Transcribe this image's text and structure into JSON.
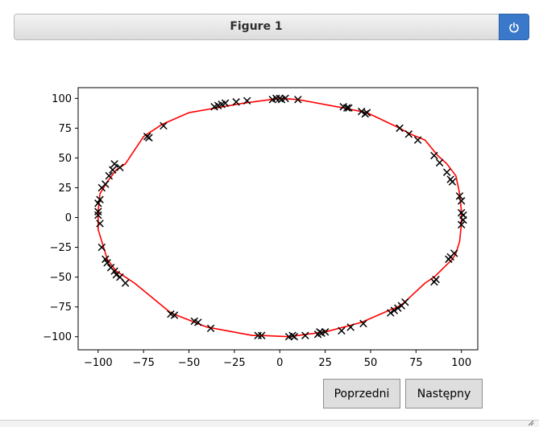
{
  "window": {
    "title": "Figure 1",
    "power_icon": "power-icon"
  },
  "buttons": {
    "prev_label": "Poprzedni",
    "next_label": "Następny"
  },
  "colors": {
    "line": "#ff0000",
    "marker": "#000000",
    "title_button": "#3a78c9"
  },
  "chart_data": {
    "type": "line",
    "title": "",
    "xlabel": "",
    "ylabel": "",
    "xlim": [
      -111,
      109
    ],
    "ylim": [
      -111,
      109
    ],
    "xticks": [
      -100,
      -75,
      -50,
      -25,
      0,
      25,
      50,
      75,
      100
    ],
    "yticks": [
      -100,
      -75,
      -50,
      -25,
      0,
      25,
      50,
      75,
      100
    ],
    "grid": false,
    "series": [
      {
        "style": "red line, closed polygon",
        "x": [
          0,
          10,
          35,
          48,
          66,
          72,
          80,
          87,
          92,
          97,
          99,
          100,
          100,
          99,
          97,
          95,
          85,
          80,
          68,
          65,
          60,
          45,
          40,
          25,
          10,
          5,
          -10,
          -15,
          -40,
          -60,
          -80,
          -85,
          -90,
          -95,
          -100,
          -100,
          -99,
          -95,
          -90,
          -85,
          -75,
          -65,
          -50,
          -20,
          -5,
          0
        ],
        "y": [
          100,
          99,
          92,
          88,
          75,
          70,
          65,
          52,
          45,
          35,
          20,
          5,
          -5,
          -20,
          -30,
          -35,
          -50,
          -55,
          -72,
          -75,
          -78,
          -88,
          -90,
          -96,
          -99,
          -100,
          -99,
          -99,
          -92,
          -80,
          -55,
          -50,
          -45,
          -35,
          -10,
          5,
          20,
          30,
          40,
          45,
          68,
          78,
          88,
          96,
          99,
          100
        ]
      },
      {
        "style": "black x markers",
        "x": [
          -4,
          -2,
          0,
          1,
          3,
          10,
          35,
          37,
          38,
          45,
          47,
          48,
          66,
          71,
          76,
          85,
          88,
          92,
          94,
          95,
          99,
          100,
          100,
          101,
          101,
          100,
          96,
          94,
          93,
          86,
          85,
          69,
          67,
          65,
          63,
          61,
          46,
          39,
          34,
          25,
          23,
          22,
          21,
          14,
          8,
          7,
          5,
          -10,
          -12,
          -38,
          -45,
          -47,
          -60,
          -58,
          -85,
          -88,
          -90,
          -91,
          -93,
          -95,
          -96,
          -98,
          -99,
          -100,
          -100,
          -100,
          -99,
          -98,
          -96,
          -94,
          -92,
          -91,
          -88,
          -72,
          -73,
          -64,
          -36,
          -34,
          -32,
          -30,
          -24,
          -18
        ],
        "y": [
          99,
          100,
          100,
          99,
          100,
          99,
          93,
          92,
          92,
          89,
          87,
          88,
          75,
          70,
          65,
          52,
          46,
          38,
          32,
          30,
          18,
          14,
          4,
          2,
          -2,
          -6,
          -30,
          -33,
          -35,
          -52,
          -54,
          -71,
          -74,
          -76,
          -78,
          -80,
          -89,
          -92,
          -95,
          -96,
          -97,
          -96,
          -98,
          -99,
          -100,
          -99,
          -100,
          -99,
          -99,
          -93,
          -88,
          -87,
          -81,
          -82,
          -55,
          -50,
          -48,
          -45,
          -42,
          -38,
          -35,
          -25,
          -5,
          2,
          5,
          12,
          15,
          25,
          28,
          35,
          40,
          45,
          42,
          67,
          68,
          77,
          93,
          94,
          95,
          96,
          97,
          98
        ]
      }
    ]
  }
}
